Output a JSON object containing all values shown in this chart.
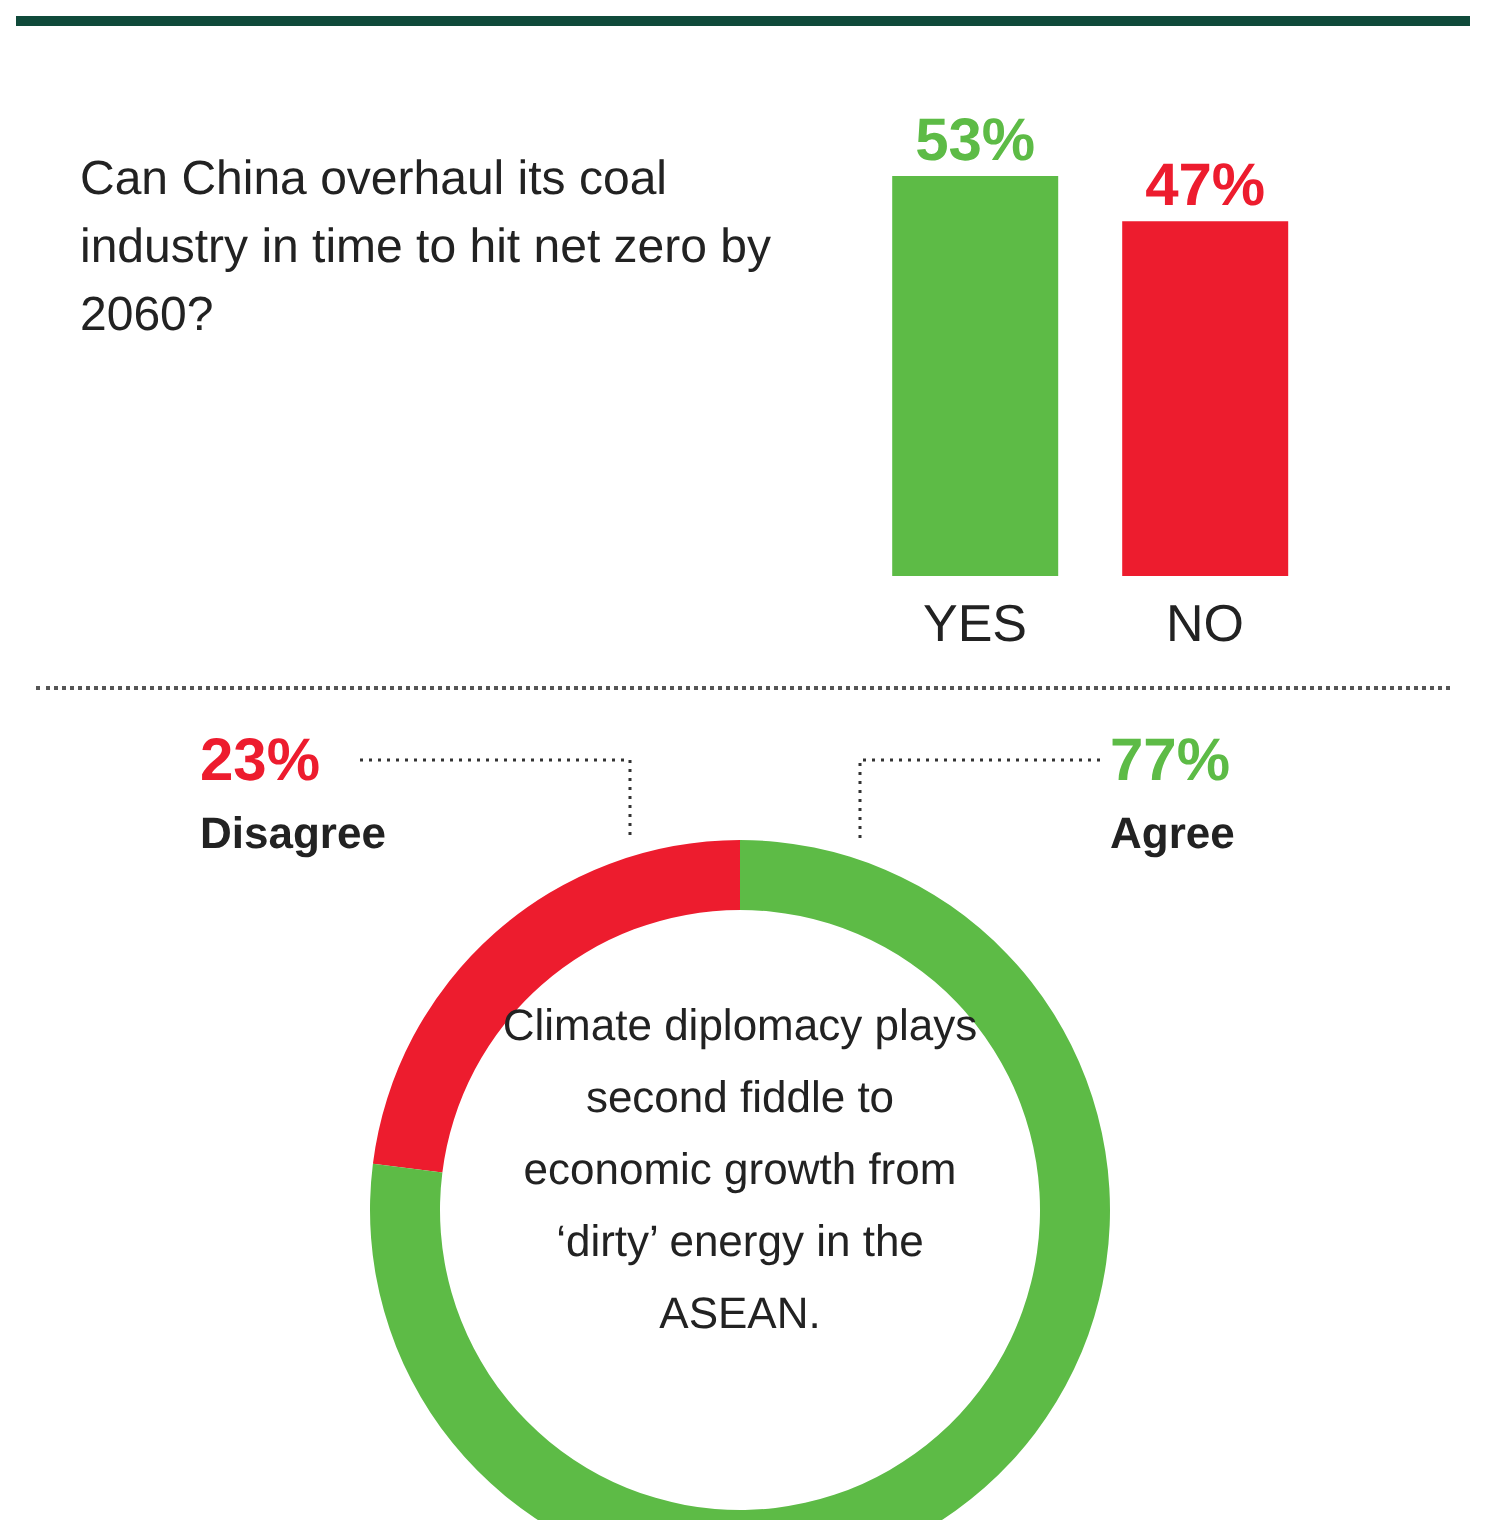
{
  "chart_data": [
    {
      "type": "bar",
      "title": "Can China overhaul its coal industry in time to hit net zero by 2060?",
      "categories": [
        "YES",
        "NO"
      ],
      "values": [
        53,
        47
      ],
      "colors": [
        "#5dbb46",
        "#ed1c2e"
      ],
      "value_labels": [
        "53%",
        "47%"
      ]
    },
    {
      "type": "donut",
      "title": "Climate diplomacy plays second fiddle to economic growth from ‘dirty’ energy in the ASEAN.",
      "categories": [
        "Disagree",
        "Agree"
      ],
      "values": [
        23,
        77
      ],
      "colors": [
        "#ed1c2e",
        "#5dbb46"
      ],
      "value_labels": [
        "23%",
        "77%"
      ]
    }
  ]
}
